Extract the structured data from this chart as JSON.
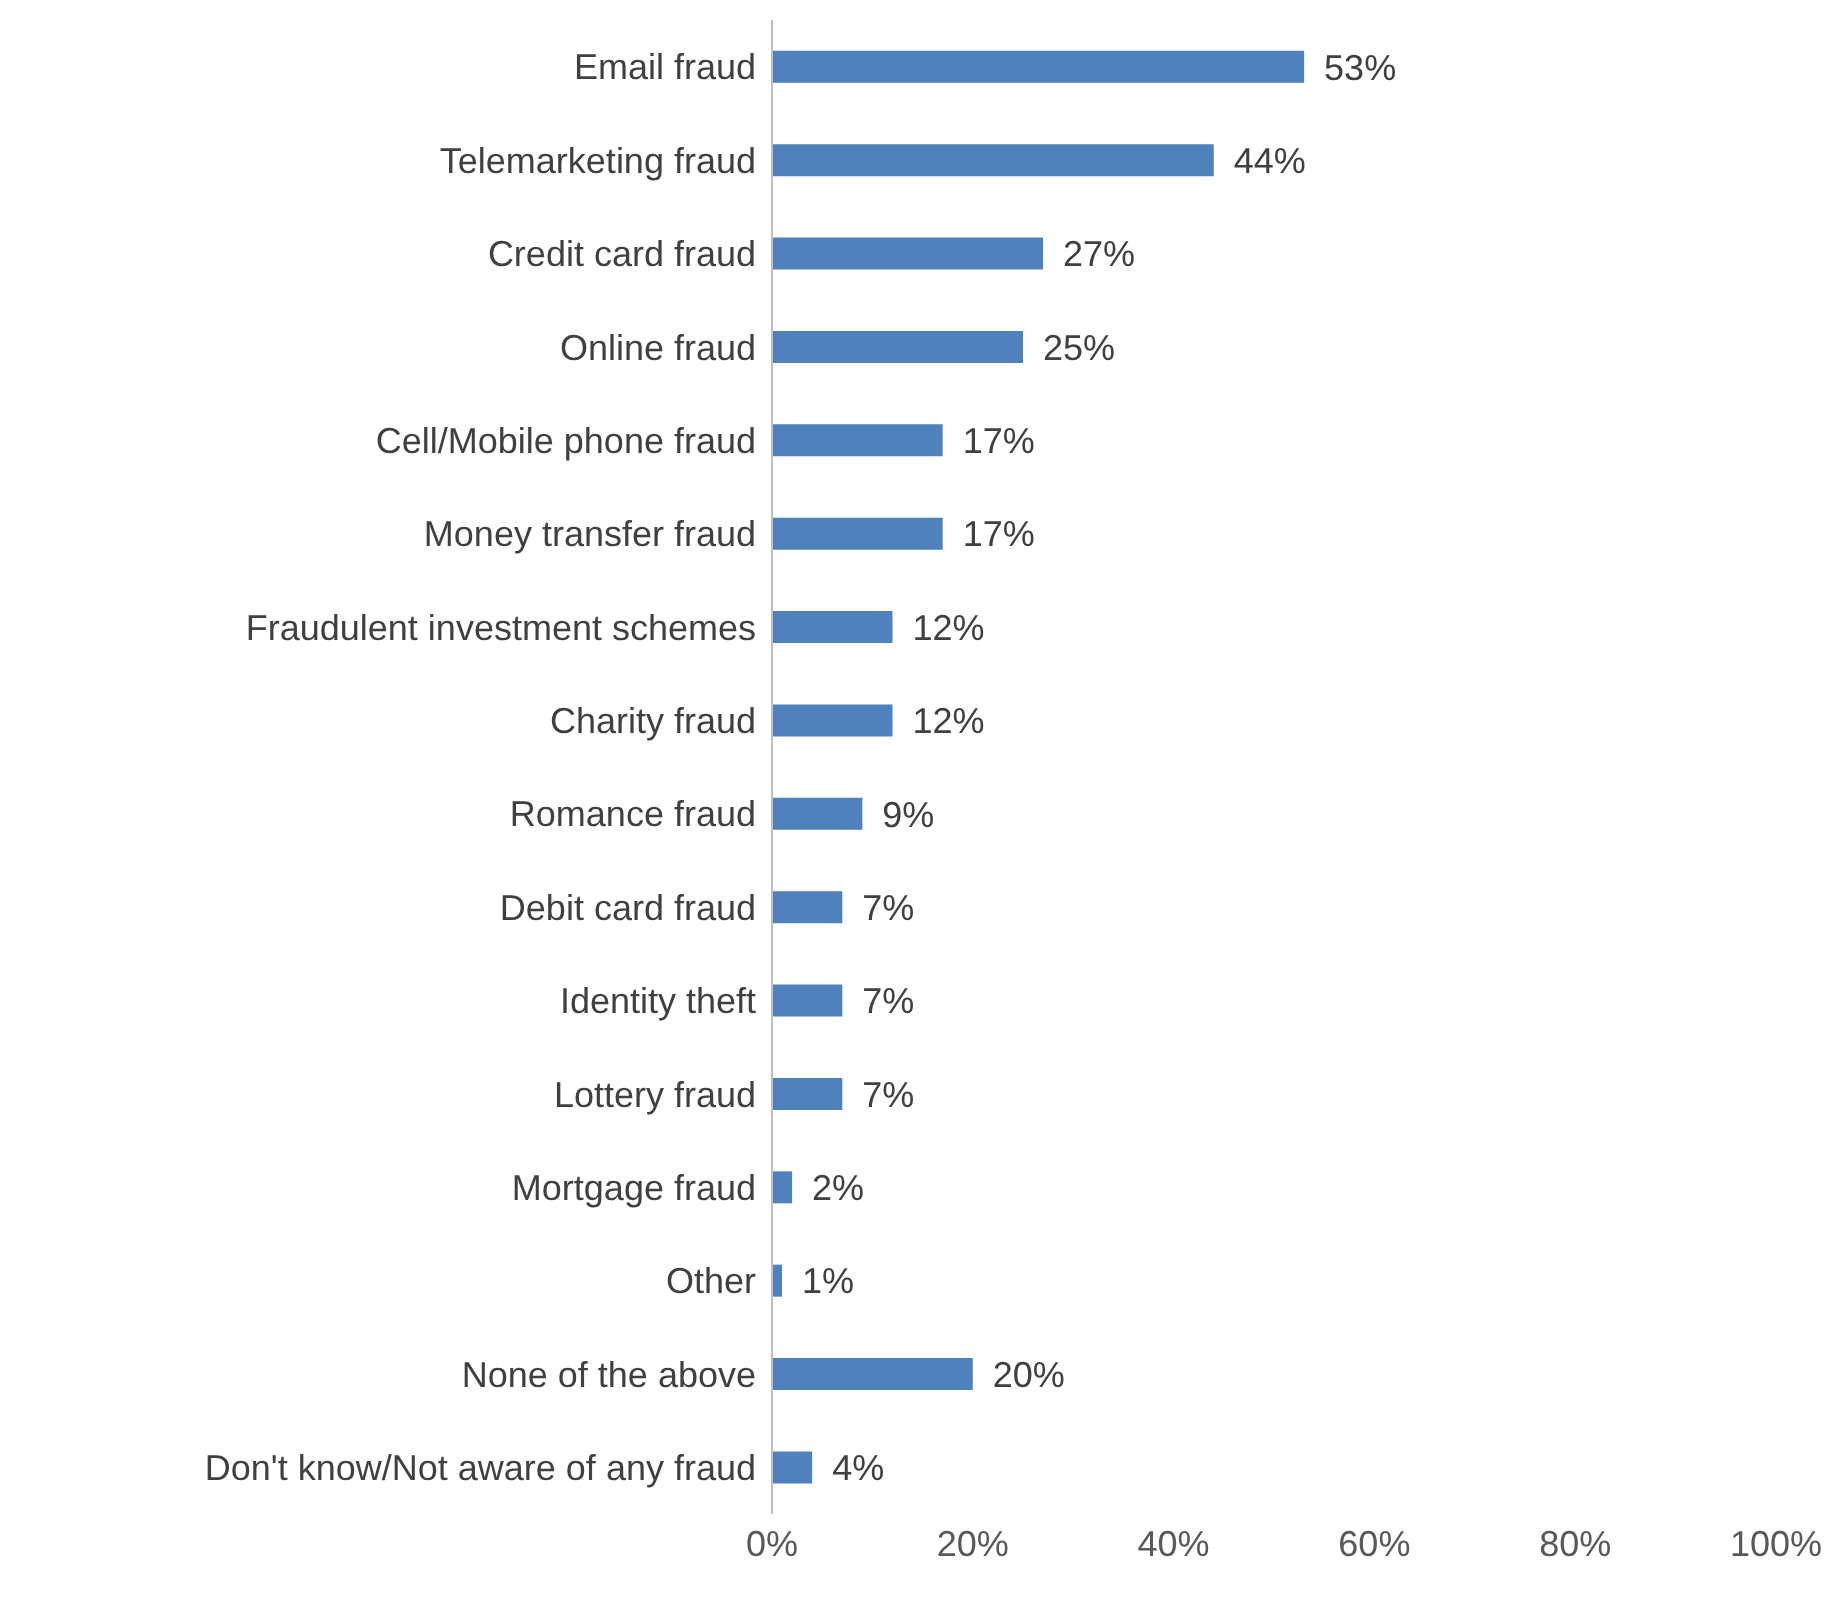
{
  "chart_data": {
    "type": "bar",
    "orientation": "horizontal",
    "categories": [
      "Email fraud",
      "Telemarketing fraud",
      "Credit card fraud",
      "Online fraud",
      "Cell/Mobile phone fraud",
      "Money transfer fraud",
      "Fraudulent investment schemes",
      "Charity fraud",
      "Romance fraud",
      "Debit card fraud",
      "Identity theft",
      "Lottery fraud",
      "Mortgage fraud",
      "Other",
      "None of the above",
      "Don't know/Not aware of any fraud"
    ],
    "values": [
      53,
      44,
      27,
      25,
      17,
      17,
      12,
      12,
      9,
      7,
      7,
      7,
      2,
      1,
      20,
      4
    ],
    "value_labels": [
      "53%",
      "44%",
      "27%",
      "25%",
      "17%",
      "17%",
      "12%",
      "12%",
      "9%",
      "7%",
      "7%",
      "7%",
      "2%",
      "1%",
      "20%",
      "4%"
    ],
    "color": "#4f81bd",
    "xlim": [
      0,
      100
    ],
    "xticks": [
      {
        "value": 0,
        "label": "0%"
      },
      {
        "value": 20,
        "label": "20%"
      },
      {
        "value": 40,
        "label": "40%"
      },
      {
        "value": 60,
        "label": "60%"
      },
      {
        "value": 80,
        "label": "80%"
      },
      {
        "value": 100,
        "label": "100%"
      }
    ],
    "grid": false,
    "legend": false
  }
}
